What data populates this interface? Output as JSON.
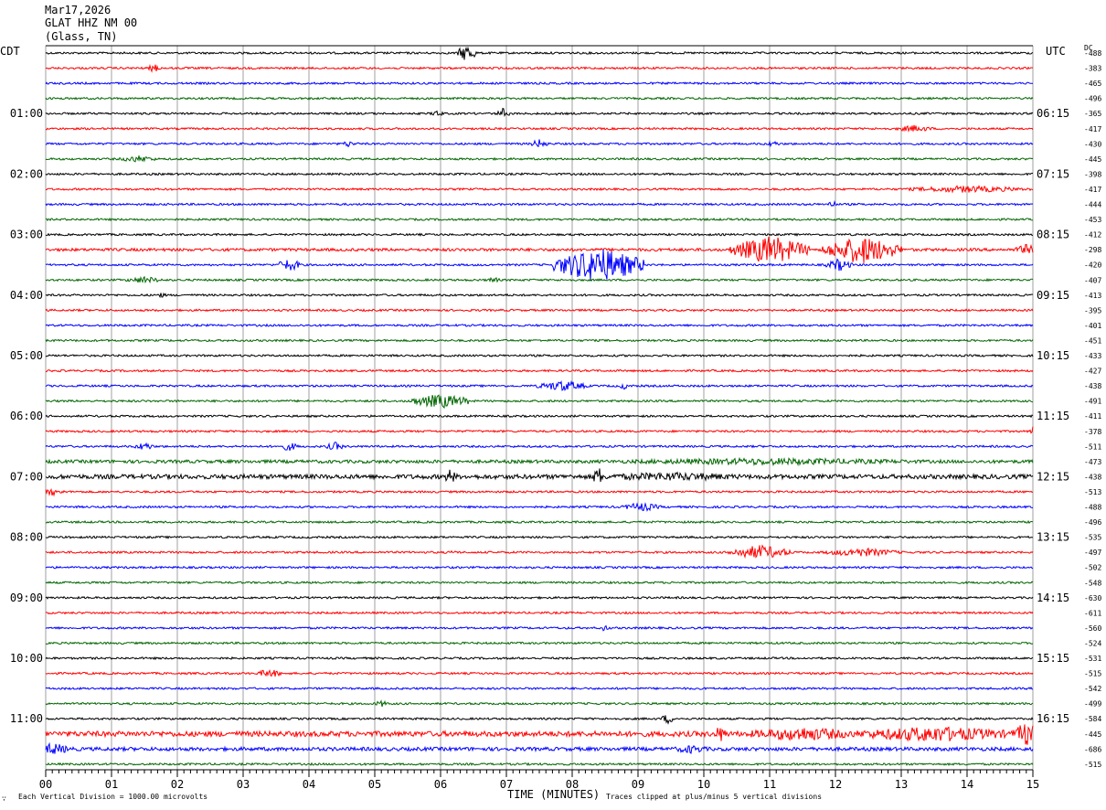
{
  "header": {
    "date": "Mar17,2026",
    "station": "GLAT HHZ NM 00",
    "location": "(Glass, TN)"
  },
  "left_timezone": "CDT",
  "right_timezone": "UTC",
  "dc_label": "DC",
  "xaxis_title": "TIME (MINUTES)",
  "footnote_left": "Each Vertical Division = 1000.00 microvolts",
  "footnote_right": "Traces clipped at plus/minus 5 vertical divisions",
  "corner_glyph": "∵",
  "colors": {
    "trace_cycle": [
      "#000000",
      "#ff0000",
      "#0000ff",
      "#006600"
    ],
    "grid": "#888888"
  },
  "chart_data": {
    "type": "line",
    "title": "GLAT HHZ NM 00",
    "xlabel": "TIME (MINUTES)",
    "ylabel": "",
    "xlim": [
      0,
      15
    ],
    "x_ticks": [
      "00",
      "01",
      "02",
      "03",
      "04",
      "05",
      "06",
      "07",
      "08",
      "09",
      "10",
      "11",
      "12",
      "13",
      "14",
      "15"
    ],
    "trace_minutes": 15,
    "left_hour_labels": [
      {
        "row": 4,
        "label": "01:00"
      },
      {
        "row": 8,
        "label": "02:00"
      },
      {
        "row": 12,
        "label": "03:00"
      },
      {
        "row": 16,
        "label": "04:00"
      },
      {
        "row": 20,
        "label": "05:00"
      },
      {
        "row": 24,
        "label": "06:00"
      },
      {
        "row": 28,
        "label": "07:00"
      },
      {
        "row": 32,
        "label": "08:00"
      },
      {
        "row": 36,
        "label": "09:00"
      },
      {
        "row": 40,
        "label": "10:00"
      },
      {
        "row": 44,
        "label": "11:00"
      }
    ],
    "right_hour_labels": [
      {
        "row": 4,
        "label": "06:15"
      },
      {
        "row": 8,
        "label": "07:15"
      },
      {
        "row": 12,
        "label": "08:15"
      },
      {
        "row": 16,
        "label": "09:15"
      },
      {
        "row": 20,
        "label": "10:15"
      },
      {
        "row": 24,
        "label": "11:15"
      },
      {
        "row": 28,
        "label": "12:15"
      },
      {
        "row": 32,
        "label": "13:15"
      },
      {
        "row": 36,
        "label": "14:15"
      },
      {
        "row": 40,
        "label": "15:15"
      },
      {
        "row": 44,
        "label": "16:15"
      }
    ],
    "dc_offsets": [
      "-488",
      "-383",
      "-465",
      "-496",
      "-365",
      "-417",
      "-430",
      "-445",
      "-398",
      "-417",
      "-444",
      "-453",
      "-412",
      "-298",
      "-420",
      "-407",
      "-413",
      "-395",
      "-401",
      "-451",
      "-433",
      "-427",
      "-438",
      "-491",
      "-411",
      "-378",
      "-511",
      "-473",
      "-438",
      "-513",
      "-488",
      "-496",
      "-535",
      "-497",
      "-502",
      "-548",
      "-630",
      "-611",
      "-560",
      "-524",
      "-531",
      "-515",
      "-542",
      "-499",
      "-584",
      "-445",
      "-686",
      "-515"
    ],
    "events": [
      {
        "row": 0,
        "minute": 6.4,
        "amp": 10,
        "dur": 0.15
      },
      {
        "row": 1,
        "minute": 1.65,
        "amp": 5,
        "dur": 0.1
      },
      {
        "row": 4,
        "minute": 6.95,
        "amp": 6,
        "dur": 0.1
      },
      {
        "row": 4,
        "minute": 5.95,
        "amp": 4,
        "dur": 0.1
      },
      {
        "row": 5,
        "minute": 13.2,
        "amp": 4,
        "dur": 0.3
      },
      {
        "row": 6,
        "minute": 4.6,
        "amp": 4,
        "dur": 0.1
      },
      {
        "row": 6,
        "minute": 7.5,
        "amp": 5,
        "dur": 0.15
      },
      {
        "row": 6,
        "minute": 11.05,
        "amp": 4,
        "dur": 0.1
      },
      {
        "row": 7,
        "minute": 1.4,
        "amp": 4,
        "dur": 0.3
      },
      {
        "row": 9,
        "minute": 14.0,
        "amp": 4,
        "dur": 1.0
      },
      {
        "row": 10,
        "minute": 11.95,
        "amp": 4,
        "dur": 0.1
      },
      {
        "row": 13,
        "minute": 11.0,
        "amp": 16,
        "dur": 0.6
      },
      {
        "row": 13,
        "minute": 12.4,
        "amp": 16,
        "dur": 0.6
      },
      {
        "row": 13,
        "minute": 14.9,
        "amp": 6,
        "dur": 0.2
      },
      {
        "row": 14,
        "minute": 8.4,
        "amp": 20,
        "dur": 0.7
      },
      {
        "row": 14,
        "minute": 3.7,
        "amp": 7,
        "dur": 0.2
      },
      {
        "row": 14,
        "minute": 12.05,
        "amp": 7,
        "dur": 0.2
      },
      {
        "row": 15,
        "minute": 1.5,
        "amp": 4,
        "dur": 0.3
      },
      {
        "row": 15,
        "minute": 6.8,
        "amp": 4,
        "dur": 0.1
      },
      {
        "row": 16,
        "minute": 1.75,
        "amp": 3,
        "dur": 0.1
      },
      {
        "row": 22,
        "minute": 7.85,
        "amp": 6,
        "dur": 0.4
      },
      {
        "row": 22,
        "minute": 8.8,
        "amp": 4,
        "dur": 0.1
      },
      {
        "row": 23,
        "minute": 6.0,
        "amp": 8,
        "dur": 0.5
      },
      {
        "row": 25,
        "minute": 15.0,
        "amp": 6,
        "dur": 0.05
      },
      {
        "row": 26,
        "minute": 1.5,
        "amp": 5,
        "dur": 0.15
      },
      {
        "row": 26,
        "minute": 3.7,
        "amp": 5,
        "dur": 0.15
      },
      {
        "row": 26,
        "minute": 4.4,
        "amp": 5,
        "dur": 0.15
      },
      {
        "row": 27,
        "minute": 11.0,
        "amp": 4,
        "dur": 3.0
      },
      {
        "row": 28,
        "minute": 6.15,
        "amp": 9,
        "dur": 0.1
      },
      {
        "row": 28,
        "minute": 8.4,
        "amp": 11,
        "dur": 0.1
      },
      {
        "row": 28,
        "minute": 9.5,
        "amp": 5,
        "dur": 1.5
      },
      {
        "row": 29,
        "minute": 0.1,
        "amp": 4,
        "dur": 0.2
      },
      {
        "row": 30,
        "minute": 9.05,
        "amp": 5,
        "dur": 0.3
      },
      {
        "row": 33,
        "minute": 6.2,
        "amp": 4,
        "dur": 0.05
      },
      {
        "row": 33,
        "minute": 10.85,
        "amp": 8,
        "dur": 0.5
      },
      {
        "row": 33,
        "minute": 12.4,
        "amp": 5,
        "dur": 0.6
      },
      {
        "row": 38,
        "minute": 8.5,
        "amp": 5,
        "dur": 0.05
      },
      {
        "row": 41,
        "minute": 3.4,
        "amp": 5,
        "dur": 0.2
      },
      {
        "row": 43,
        "minute": 5.1,
        "amp": 4,
        "dur": 0.1
      },
      {
        "row": 44,
        "minute": 9.45,
        "amp": 6,
        "dur": 0.1
      },
      {
        "row": 45,
        "minute": 10.25,
        "amp": 10,
        "dur": 0.1
      },
      {
        "row": 45,
        "minute": 11.5,
        "amp": 8,
        "dur": 1.0
      },
      {
        "row": 45,
        "minute": 13.5,
        "amp": 9,
        "dur": 1.4
      },
      {
        "row": 45,
        "minute": 14.9,
        "amp": 14,
        "dur": 0.2
      },
      {
        "row": 46,
        "minute": 0.1,
        "amp": 7,
        "dur": 0.3
      },
      {
        "row": 46,
        "minute": 9.8,
        "amp": 5,
        "dur": 0.3
      }
    ],
    "noisy_rows": [
      {
        "row": 28,
        "level": 2.2
      },
      {
        "row": 45,
        "level": 2.6
      },
      {
        "row": 27,
        "level": 1.6
      },
      {
        "row": 46,
        "level": 1.8
      },
      {
        "row": 13,
        "level": 1.4
      }
    ],
    "grid": true
  }
}
